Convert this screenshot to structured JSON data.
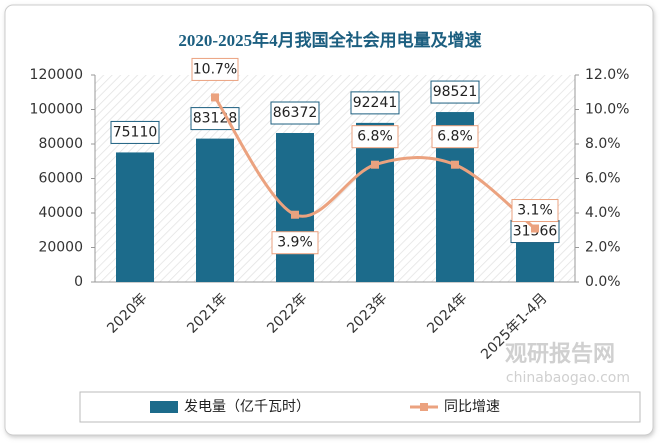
{
  "chart_data": {
    "type": "bar-line",
    "title": "2020-2025年4月我国全社会用电量及增速",
    "categories": [
      "2020年",
      "2021年",
      "2022年",
      "2023年",
      "2024年",
      "2025年1-4月"
    ],
    "series": [
      {
        "name": "发电量（亿千瓦时）",
        "type": "bar",
        "color": "#1c6b8b",
        "values": [
          75110,
          83128,
          86372,
          92241,
          98521,
          31566
        ]
      },
      {
        "name": "同比增速",
        "type": "line",
        "axis": "y2",
        "color": "#eba27f",
        "values": [
          null,
          10.7,
          3.9,
          6.8,
          6.8,
          3.1
        ],
        "value_labels": [
          null,
          "10.7%",
          "3.9%",
          "6.8%",
          "6.8%",
          "3.1%"
        ]
      }
    ],
    "ylim": [
      0,
      120000
    ],
    "yticks": [
      0,
      20000,
      40000,
      60000,
      80000,
      100000,
      120000
    ],
    "y2lim": [
      0,
      12
    ],
    "y2ticks": [
      {
        "value": 0,
        "label": "0.0%"
      },
      {
        "value": 2,
        "label": "2.0%"
      },
      {
        "value": 4,
        "label": "4.0%"
      },
      {
        "value": 6,
        "label": "6.0%"
      },
      {
        "value": 8,
        "label": "8.0%"
      },
      {
        "value": 10,
        "label": "10.0%"
      },
      {
        "value": 12,
        "label": "12.0%"
      }
    ],
    "legend": "bottom",
    "watermark": {
      "name": "观研报告网",
      "url": "chinabaogao.com"
    }
  }
}
